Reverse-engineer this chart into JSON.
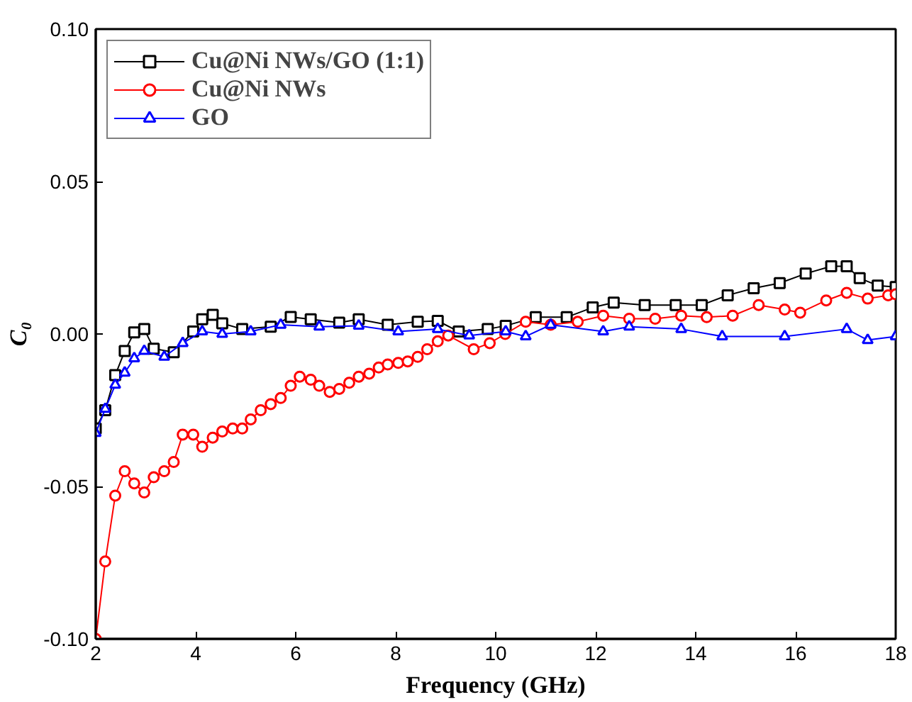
{
  "chart_data": {
    "type": "line",
    "xlabel": "Frequency (GHz)",
    "ylabel": "C₀",
    "xlim": [
      2,
      18
    ],
    "ylim": [
      -0.1,
      0.1
    ],
    "xticks": [
      2,
      4,
      6,
      8,
      10,
      12,
      14,
      16,
      18
    ],
    "yticks": [
      {
        "value": -0.1,
        "label": "-0.10"
      },
      {
        "value": -0.05,
        "label": "-0.05"
      },
      {
        "value": 0,
        "label": "0.00"
      },
      {
        "value": 0.05,
        "label": "0.05"
      },
      {
        "value": 0.1,
        "label": "0.10"
      }
    ],
    "grid": false,
    "legend": "top left",
    "line_style": "solid",
    "series": [
      {
        "name": "Cu@Ni NWs/GO (1:1)",
        "color": "#000000",
        "marker": "square",
        "x": [
          2.0,
          2.19,
          2.39,
          2.58,
          2.77,
          2.97,
          3.16,
          3.56,
          3.95,
          4.13,
          4.34,
          4.53,
          4.93,
          5.5,
          5.9,
          6.3,
          6.87,
          7.26,
          7.84,
          8.44,
          8.84,
          9.26,
          9.84,
          10.2,
          10.8,
          11.42,
          11.94,
          12.36,
          12.98,
          13.6,
          14.12,
          14.64,
          15.16,
          15.68,
          16.2,
          16.71,
          17.02,
          17.28,
          17.64,
          18.0
        ],
        "values": [
          -0.031,
          -0.025,
          -0.0135,
          -0.0056,
          0.0005,
          0.0016,
          -0.0048,
          -0.006,
          0.0008,
          0.0048,
          0.0063,
          0.0035,
          0.0016,
          0.0024,
          0.0056,
          0.0048,
          0.0037,
          0.0048,
          0.003,
          0.004,
          0.0043,
          0.0008,
          0.0016,
          0.0027,
          0.0055,
          0.0055,
          0.0087,
          0.0103,
          0.0095,
          0.0095,
          0.0095,
          0.0127,
          0.015,
          0.0167,
          0.0198,
          0.0222,
          0.0222,
          0.0183,
          0.0159,
          0.0154
        ]
      },
      {
        "name": "Cu@Ni NWs",
        "color": "#ff0000",
        "marker": "circle",
        "x": [
          2.0,
          2.19,
          2.39,
          2.58,
          2.77,
          2.97,
          3.16,
          3.37,
          3.56,
          3.74,
          3.95,
          4.13,
          4.34,
          4.53,
          4.74,
          4.93,
          5.1,
          5.3,
          5.5,
          5.7,
          5.9,
          6.08,
          6.3,
          6.47,
          6.68,
          6.87,
          7.07,
          7.26,
          7.47,
          7.66,
          7.84,
          8.05,
          8.24,
          8.44,
          8.63,
          8.84,
          9.05,
          9.56,
          9.88,
          10.19,
          10.6,
          11.1,
          11.64,
          12.15,
          12.67,
          13.19,
          13.71,
          14.22,
          14.74,
          15.26,
          15.78,
          16.09,
          16.61,
          17.02,
          17.44,
          17.85,
          18.0
        ],
        "values": [
          -0.1,
          -0.0746,
          -0.053,
          -0.045,
          -0.049,
          -0.052,
          -0.047,
          -0.045,
          -0.042,
          -0.033,
          -0.033,
          -0.037,
          -0.034,
          -0.032,
          -0.031,
          -0.031,
          -0.028,
          -0.025,
          -0.023,
          -0.021,
          -0.017,
          -0.014,
          -0.015,
          -0.017,
          -0.019,
          -0.018,
          -0.016,
          -0.014,
          -0.013,
          -0.011,
          -0.01,
          -0.0095,
          -0.009,
          -0.0075,
          -0.005,
          -0.0024,
          -0.0005,
          -0.005,
          -0.003,
          0.0,
          0.004,
          0.003,
          0.004,
          0.006,
          0.005,
          0.005,
          0.006,
          0.0055,
          0.006,
          0.0095,
          0.008,
          0.007,
          0.011,
          0.0135,
          0.0116,
          0.0127,
          0.013
        ]
      },
      {
        "name": "GO",
        "color": "#0000ff",
        "marker": "triangle",
        "x": [
          2.0,
          2.19,
          2.39,
          2.58,
          2.77,
          2.97,
          3.37,
          3.74,
          4.13,
          4.53,
          5.1,
          5.7,
          6.47,
          7.26,
          8.05,
          8.84,
          9.47,
          10.2,
          10.6,
          11.1,
          12.15,
          12.67,
          13.71,
          14.53,
          15.78,
          17.02,
          17.44,
          18.0
        ],
        "values": [
          -0.0325,
          -0.0246,
          -0.0167,
          -0.0127,
          -0.008,
          -0.0056,
          -0.0075,
          -0.003,
          0.0008,
          0.0,
          0.0008,
          0.003,
          0.0024,
          0.0027,
          0.0008,
          0.0016,
          -0.0005,
          0.0008,
          -0.0008,
          0.003,
          0.0008,
          0.0024,
          0.0016,
          -0.0008,
          -0.0008,
          0.0016,
          -0.002,
          -0.0008
        ]
      }
    ]
  }
}
